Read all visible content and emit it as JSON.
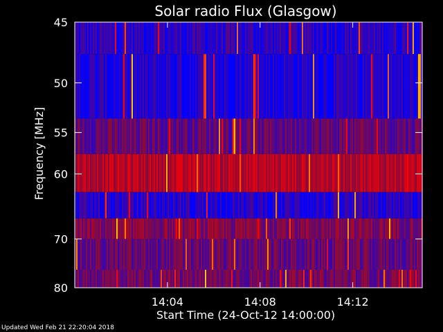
{
  "chart_data": {
    "type": "heatmap",
    "title": "Solar radio Flux (Glasgow)",
    "xlabel": "Start Time (24-Oct-12 14:00:00)",
    "ylabel": "Frequency [MHz]",
    "x_ticks": [
      "14:04",
      "14:08",
      "14:12"
    ],
    "x_tick_minutes": [
      4,
      8,
      12
    ],
    "x_range_minutes": [
      0,
      15
    ],
    "y_ticks": [
      45,
      50,
      55,
      60,
      70,
      80
    ],
    "y_range": [
      45,
      80
    ],
    "y_scale": "reciprocal",
    "frequency_bands": [
      {
        "from": 45,
        "to": 47.5,
        "level": 0.15
      },
      {
        "from": 47.5,
        "to": 53.5,
        "level": 0.1
      },
      {
        "from": 53.5,
        "to": 57.5,
        "level": 0.35
      },
      {
        "from": 57.5,
        "to": 62.5,
        "level": 0.65
      },
      {
        "from": 62.5,
        "to": 66.5,
        "level": 0.12
      },
      {
        "from": 66.5,
        "to": 70,
        "level": 0.45
      },
      {
        "from": 70,
        "to": 76,
        "level": 0.35
      },
      {
        "from": 76,
        "to": 80,
        "level": 0.4
      }
    ],
    "colors": {
      "low": "#0000ff",
      "mid": "#8a0a3a",
      "high": "#ff0000",
      "peak": "#ffd000"
    }
  },
  "footer": "Updated Wed Feb 21 22:20:04 2018"
}
